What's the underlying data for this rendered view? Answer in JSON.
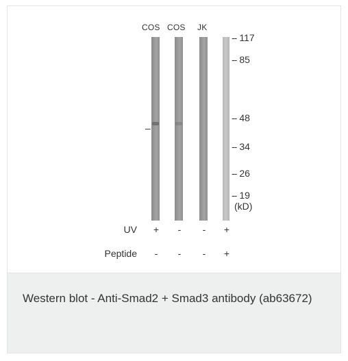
{
  "figure": {
    "lane_labels": [
      "COS",
      "COS",
      "JK"
    ],
    "mw_markers": [
      "117",
      "85",
      "48",
      "34",
      "26",
      "19"
    ],
    "unit": "(kD)",
    "band_indicator": "–",
    "rows": [
      {
        "label": "UV",
        "values": [
          "+",
          "-",
          "-",
          "+"
        ]
      },
      {
        "label": "Peptide",
        "values": [
          "-",
          "-",
          "-",
          "+"
        ]
      }
    ]
  },
  "caption": {
    "text": "Western blot - Anti-Smad2 + Smad3 antibody (ab63672)"
  }
}
